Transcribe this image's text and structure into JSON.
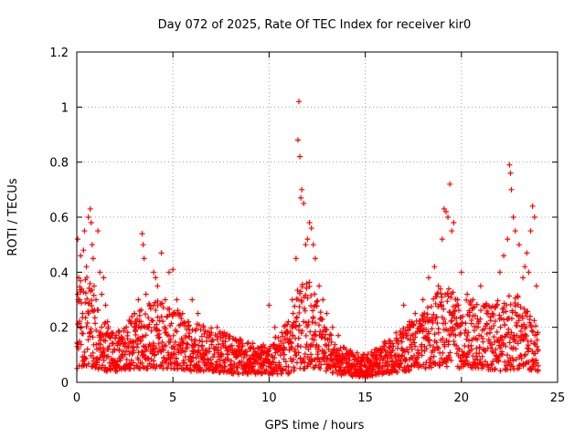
{
  "chart_data": {
    "type": "scatter",
    "title": "Day 072 of 2025, Rate Of TEC Index for receiver kir0",
    "xlabel": "GPS time / hours",
    "ylabel": "ROTI / TECUs",
    "xlim": [
      0,
      25
    ],
    "ylim": [
      0,
      1.2
    ],
    "x_ticks": [
      0,
      5,
      10,
      15,
      20,
      25
    ],
    "y_ticks": [
      0,
      0.2,
      0.4,
      0.6,
      0.8,
      1,
      1.2
    ],
    "x_tick_labels": [
      "0",
      "5",
      "10",
      "15",
      "20",
      "25"
    ],
    "y_tick_labels": [
      "0",
      "0.2",
      "0.4",
      "0.6",
      "0.8",
      "1",
      "1.2"
    ],
    "grid": true,
    "marker": "+",
    "marker_color": "#ff0000",
    "series": [
      {
        "name": "ROTI",
        "x": [
          0.05,
          0.1,
          0.15,
          0.2,
          0.3,
          0.35,
          0.4,
          0.5,
          0.6,
          0.7,
          0.75,
          0.8,
          0.85,
          0.9,
          1.0,
          1.1,
          1.2,
          1.3,
          1.4,
          1.5,
          1.6,
          1.8,
          2.0,
          2.2,
          2.5,
          2.8,
          3.0,
          3.2,
          3.4,
          3.45,
          3.5,
          3.6,
          3.8,
          4.0,
          4.1,
          4.2,
          4.4,
          4.6,
          4.8,
          5.0,
          5.2,
          5.5,
          5.8,
          6.0,
          6.3,
          6.6,
          7.0,
          7.3,
          7.6,
          8.0,
          8.3,
          8.6,
          9.0,
          9.3,
          9.6,
          10.0,
          10.3,
          10.6,
          11.0,
          11.2,
          11.4,
          11.5,
          11.55,
          11.6,
          11.65,
          11.7,
          11.8,
          11.9,
          12.0,
          12.1,
          12.2,
          12.3,
          12.4,
          12.6,
          12.8,
          13.0,
          13.3,
          13.6,
          14.0,
          14.3,
          14.6,
          15.0,
          15.3,
          15.6,
          16.0,
          16.3,
          16.6,
          17.0,
          17.3,
          17.6,
          18.0,
          18.3,
          18.6,
          18.8,
          19.0,
          19.1,
          19.2,
          19.3,
          19.4,
          19.5,
          19.6,
          19.8,
          20.0,
          20.3,
          20.6,
          21.0,
          21.3,
          21.6,
          22.0,
          22.2,
          22.4,
          22.5,
          22.55,
          22.6,
          22.7,
          22.8,
          23.0,
          23.2,
          23.3,
          23.4,
          23.5,
          23.6,
          23.7,
          23.8,
          23.9
        ],
        "y": [
          0.52,
          0.38,
          0.3,
          0.46,
          0.25,
          0.48,
          0.55,
          0.42,
          0.6,
          0.63,
          0.58,
          0.5,
          0.45,
          0.35,
          0.3,
          0.55,
          0.4,
          0.32,
          0.38,
          0.28,
          0.22,
          0.18,
          0.16,
          0.12,
          0.1,
          0.15,
          0.25,
          0.3,
          0.54,
          0.5,
          0.45,
          0.32,
          0.28,
          0.4,
          0.38,
          0.35,
          0.47,
          0.3,
          0.4,
          0.41,
          0.3,
          0.25,
          0.22,
          0.3,
          0.25,
          0.2,
          0.18,
          0.2,
          0.15,
          0.12,
          0.15,
          0.14,
          0.12,
          0.1,
          0.13,
          0.28,
          0.2,
          0.15,
          0.22,
          0.3,
          0.45,
          0.88,
          1.02,
          0.82,
          0.67,
          0.7,
          0.65,
          0.5,
          0.52,
          0.58,
          0.56,
          0.5,
          0.45,
          0.35,
          0.3,
          0.25,
          0.2,
          0.17,
          0.12,
          0.1,
          0.08,
          0.06,
          0.08,
          0.1,
          0.12,
          0.15,
          0.18,
          0.28,
          0.22,
          0.25,
          0.3,
          0.38,
          0.42,
          0.35,
          0.52,
          0.63,
          0.62,
          0.6,
          0.72,
          0.55,
          0.58,
          0.3,
          0.4,
          0.32,
          0.3,
          0.35,
          0.28,
          0.25,
          0.4,
          0.46,
          0.52,
          0.79,
          0.76,
          0.7,
          0.6,
          0.55,
          0.5,
          0.38,
          0.42,
          0.47,
          0.4,
          0.55,
          0.64,
          0.6,
          0.35
        ],
        "band_x": [
          0,
          0.5,
          1,
          1.5,
          2,
          3,
          4,
          5,
          6,
          7,
          8,
          9,
          10,
          11,
          11.5,
          12,
          12.5,
          13,
          14,
          15,
          16,
          17,
          18,
          19,
          20,
          21,
          22,
          23,
          24
        ],
        "band_low": [
          0.05,
          0.06,
          0.05,
          0.04,
          0.04,
          0.05,
          0.05,
          0.05,
          0.04,
          0.04,
          0.03,
          0.03,
          0.03,
          0.03,
          0.05,
          0.05,
          0.05,
          0.04,
          0.02,
          0.02,
          0.03,
          0.04,
          0.05,
          0.06,
          0.05,
          0.05,
          0.04,
          0.05,
          0.04
        ],
        "band_high": [
          0.35,
          0.4,
          0.3,
          0.22,
          0.18,
          0.25,
          0.3,
          0.28,
          0.22,
          0.2,
          0.17,
          0.15,
          0.15,
          0.22,
          0.35,
          0.4,
          0.3,
          0.2,
          0.12,
          0.1,
          0.15,
          0.2,
          0.25,
          0.35,
          0.32,
          0.28,
          0.3,
          0.33,
          0.2
        ]
      }
    ]
  }
}
